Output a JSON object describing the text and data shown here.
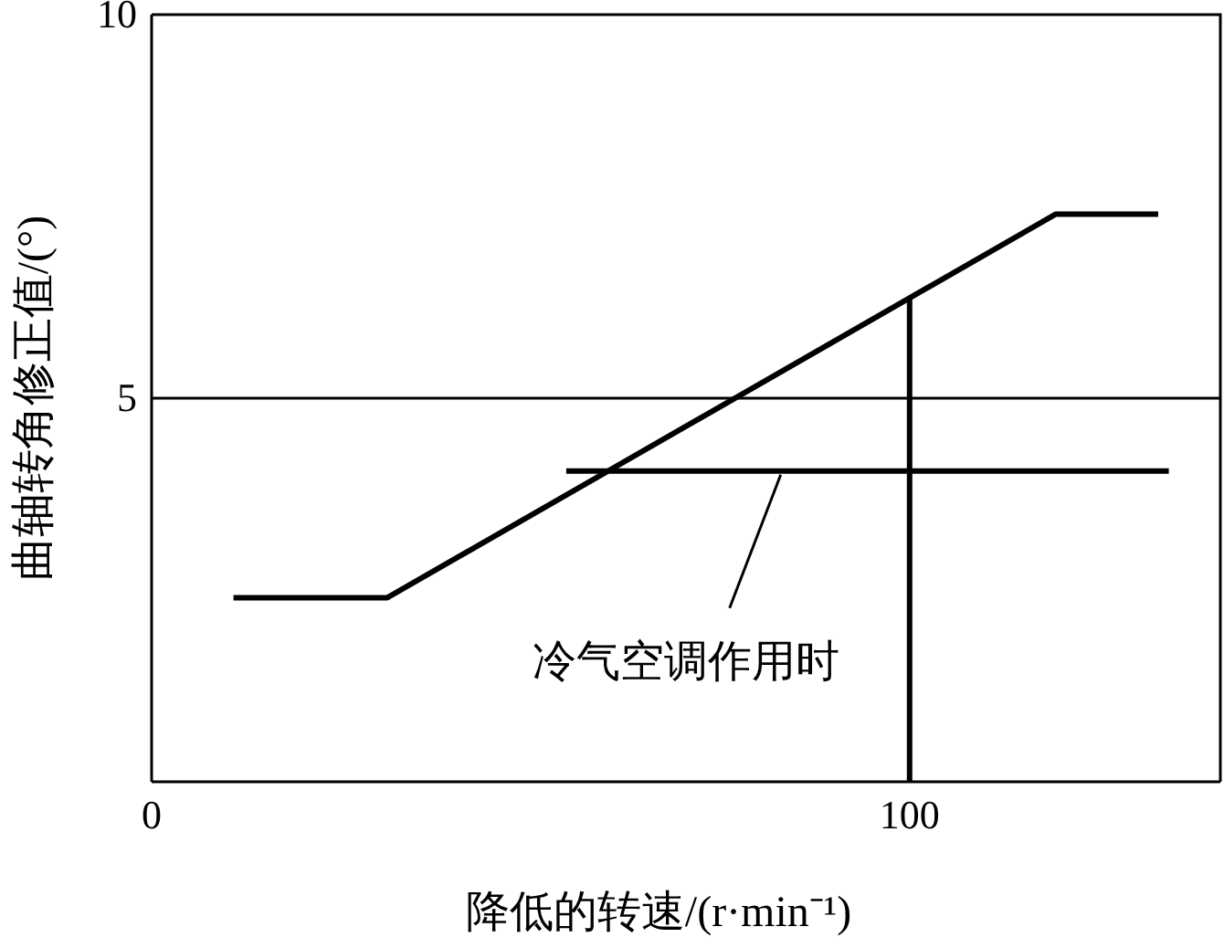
{
  "chart_data": {
    "type": "line",
    "xlabel": "降低的转速/(r·min⁻¹)",
    "ylabel": "曲轴转角修正值/(°)",
    "xlim": [
      0,
      141
    ],
    "xticks": [
      0,
      100
    ],
    "ylim": [
      0,
      10
    ],
    "yticks": [
      5,
      10
    ],
    "grid": false,
    "marker": "none",
    "line_style": "solid",
    "series": [
      {
        "color": "#000000",
        "x": [
          10.8,
          31.1,
          119.3,
          132.8
        ],
        "values": [
          2.4,
          2.4,
          7.4,
          7.4
        ]
      },
      {
        "color": "#000000",
        "x": [
          54.7,
          134.2
        ],
        "values": [
          4.05,
          4.05
        ]
      },
      {
        "color": "#000000",
        "x": [
          100,
          100
        ],
        "values": [
          0,
          6.3
        ]
      }
    ],
    "ref_lines": [
      {
        "axis": "y",
        "value": 5,
        "color": "#000000"
      }
    ],
    "annotations": [
      {
        "text": "冷气空调作用时",
        "x": 83,
        "y": 4.05
      }
    ]
  }
}
